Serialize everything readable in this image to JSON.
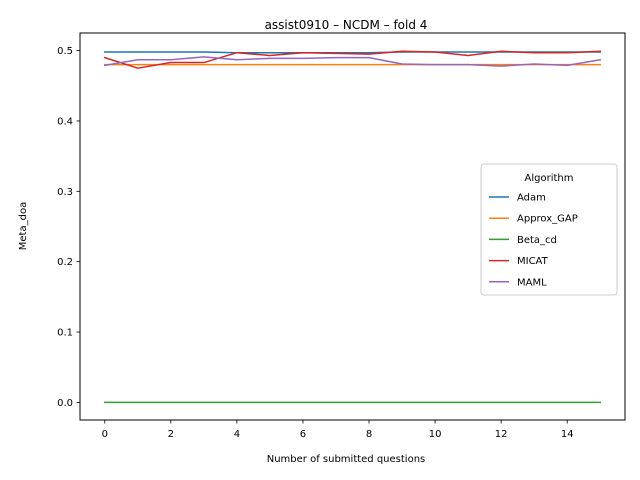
{
  "chart_data": {
    "type": "line",
    "title": "assist0910 – NCDM – fold 4",
    "xlabel": "Number of submitted questions",
    "ylabel": "Meta_doa",
    "xlim": [
      -0.75,
      15.75
    ],
    "ylim": [
      -0.025,
      0.525
    ],
    "xticks": [
      0,
      2,
      4,
      6,
      8,
      10,
      12,
      14
    ],
    "yticks": [
      0.0,
      0.1,
      0.2,
      0.3,
      0.4,
      0.5
    ],
    "ytick_labels": [
      "0.0",
      "0.1",
      "0.2",
      "0.3",
      "0.4",
      "0.5"
    ],
    "grid": false,
    "legend": {
      "title": "Algorithm",
      "placement": "center-right"
    },
    "x": [
      0,
      1,
      2,
      3,
      4,
      5,
      6,
      7,
      8,
      9,
      10,
      11,
      12,
      13,
      14,
      15
    ],
    "series": [
      {
        "name": "Adam",
        "color": "#1f77b4",
        "values": [
          0.498,
          0.498,
          0.498,
          0.498,
          0.497,
          0.497,
          0.497,
          0.497,
          0.497,
          0.498,
          0.498,
          0.498,
          0.498,
          0.498,
          0.498,
          0.498
        ]
      },
      {
        "name": "Approx_GAP",
        "color": "#ff7f0e",
        "values": [
          0.48,
          0.48,
          0.48,
          0.48,
          0.48,
          0.48,
          0.48,
          0.48,
          0.48,
          0.48,
          0.48,
          0.48,
          0.48,
          0.48,
          0.48,
          0.48
        ]
      },
      {
        "name": "Beta_cd",
        "color": "#2ca02c",
        "values": [
          0.0,
          0.0,
          0.0,
          0.0,
          0.0,
          0.0,
          0.0,
          0.0,
          0.0,
          0.0,
          0.0,
          0.0,
          0.0,
          0.0,
          0.0,
          0.0
        ]
      },
      {
        "name": "MICAT",
        "color": "#d62728",
        "values": [
          0.49,
          0.475,
          0.483,
          0.483,
          0.497,
          0.493,
          0.497,
          0.496,
          0.495,
          0.499,
          0.498,
          0.493,
          0.499,
          0.497,
          0.497,
          0.499
        ]
      },
      {
        "name": "MAML",
        "color": "#9467bd",
        "values": [
          0.479,
          0.487,
          0.487,
          0.491,
          0.487,
          0.489,
          0.489,
          0.49,
          0.49,
          0.481,
          0.48,
          0.48,
          0.478,
          0.481,
          0.479,
          0.487
        ]
      }
    ]
  }
}
